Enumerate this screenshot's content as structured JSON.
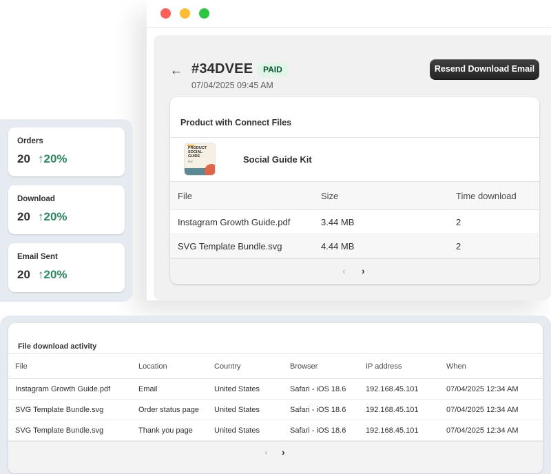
{
  "window": {
    "order": {
      "id": "#34DVEE",
      "status": "PAID",
      "date": "07/04/2025 09:45 AM",
      "resend_label": "Resend Download Email"
    },
    "product_card": {
      "title": "Product with Connect Files",
      "product": {
        "name": "Social Guide Kit",
        "thumb_text": "PRODUCT SOCIAL GUIDE",
        "thumb_sub": "PDF"
      },
      "columns": [
        "File",
        "Size",
        "Time download"
      ],
      "rows": [
        {
          "file": "Instagram Growth Guide.pdf",
          "size": "3.44 MB",
          "downloads": "2"
        },
        {
          "file": "SVG Template Bundle.svg",
          "size": "4.44 MB",
          "downloads": "2"
        }
      ],
      "pager": {
        "prev": "‹",
        "next": "›"
      }
    }
  },
  "stats": [
    {
      "label": "Orders",
      "value": "20",
      "trend": "↑20%"
    },
    {
      "label": "Download",
      "value": "20",
      "trend": "↑20%"
    },
    {
      "label": "Email Sent",
      "value": "20",
      "trend": "↑20%"
    }
  ],
  "activity": {
    "title": "File download activity",
    "columns": [
      "File",
      "Location",
      "Country",
      "Browser",
      "IP address",
      "When"
    ],
    "rows": [
      {
        "file": "Instagram Growth Guide.pdf",
        "location": "Email",
        "country": "United States",
        "browser": "Safari - iOS 18.6",
        "ip": "192.168.45.101",
        "when": "07/04/2025 12:34 AM"
      },
      {
        "file": "SVG Template Bundle.svg",
        "location": "Order status page",
        "country": "United States",
        "browser": "Safari - iOS 18.6",
        "ip": "192.168.45.101",
        "when": "07/04/2025 12:34 AM"
      },
      {
        "file": "SVG Template Bundle.svg",
        "location": "Thank you page",
        "country": "United States",
        "browser": "Safari - iOS 18.6",
        "ip": "192.168.45.101",
        "when": "07/04/2025 12:34 AM"
      }
    ],
    "pager": {
      "prev": "‹",
      "next": "›"
    }
  },
  "icons": {
    "back": "←"
  },
  "colors": {
    "paid_bg": "#dff5e6",
    "paid_text": "#0c5132",
    "trend_green": "#2a8b5e",
    "panel_bg": "#e6ebf2"
  }
}
